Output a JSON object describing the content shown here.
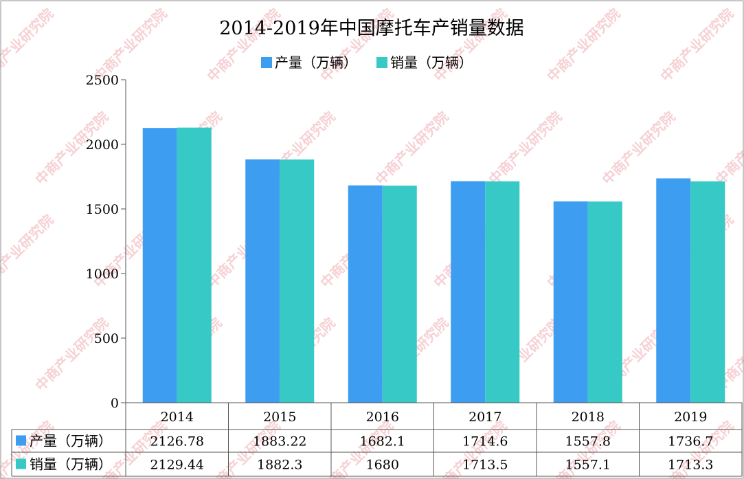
{
  "chart_data": {
    "type": "bar",
    "title": "2014-2019年中国摩托车产销量数据",
    "categories": [
      "2014",
      "2015",
      "2016",
      "2017",
      "2018",
      "2019"
    ],
    "series": [
      {
        "name": "产量（万辆）",
        "color": "#3d9df0",
        "values": [
          2126.78,
          1883.22,
          1682.1,
          1714.6,
          1557.8,
          1736.7
        ],
        "labels": [
          "2126.78",
          "1883.22",
          "1682.1",
          "1714.6",
          "1557.8",
          "1736.7"
        ]
      },
      {
        "name": "销量（万辆）",
        "color": "#36c9c5",
        "values": [
          2129.44,
          1882.3,
          1680,
          1713.5,
          1557.1,
          1713.3
        ],
        "labels": [
          "2129.44",
          "1882.3",
          "1680",
          "1713.5",
          "1557.1",
          "1713.3"
        ]
      }
    ],
    "ylim": [
      0,
      2500
    ],
    "yticks": [
      "0",
      "500",
      "1000",
      "1500",
      "2000",
      "2500"
    ],
    "grid": false,
    "legend": "top-center",
    "data_table": true
  },
  "watermark": "中商产业研究院"
}
